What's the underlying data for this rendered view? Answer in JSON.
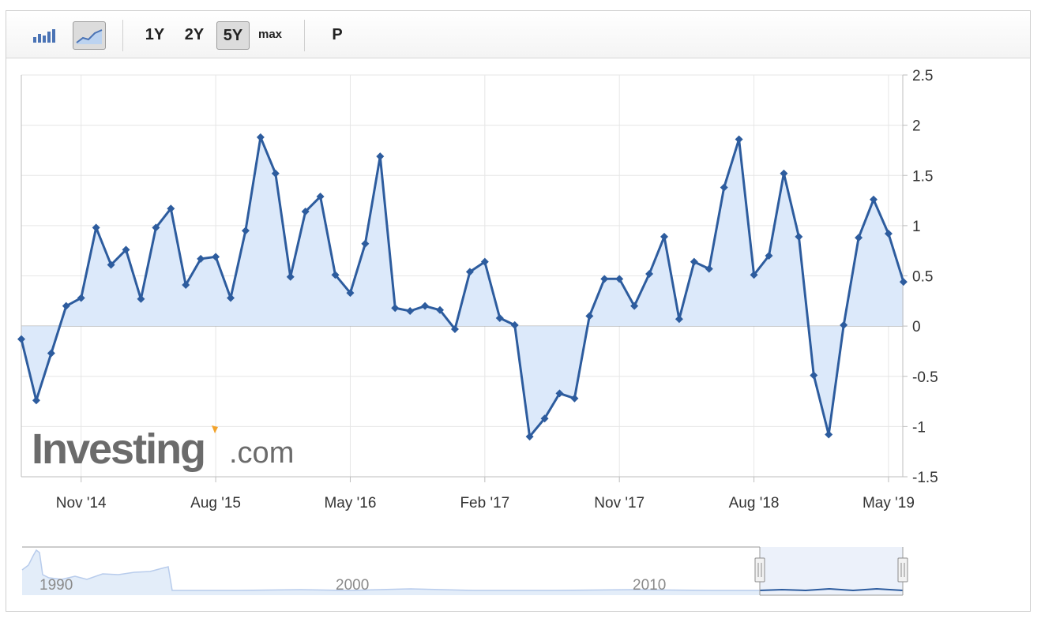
{
  "toolbar": {
    "chart_types": [
      {
        "icon": "bar-chart-icon",
        "active": false
      },
      {
        "icon": "line-chart-icon",
        "active": true
      }
    ],
    "ranges": [
      {
        "label": "1Y",
        "active": false
      },
      {
        "label": "2Y",
        "active": false
      },
      {
        "label": "5Y",
        "active": true
      },
      {
        "label": "max",
        "active": false
      }
    ],
    "extra_label": "P"
  },
  "watermark": {
    "brand": "Investing",
    "suffix": ".com"
  },
  "colors": {
    "line": "#2d5c9e",
    "fill": "#dce9fa",
    "grid": "#e6e6e6",
    "axis": "#bdbdbd",
    "text": "#333333"
  },
  "chart_data": {
    "type": "area",
    "x_start": "Jul '14",
    "x_end": "May '19",
    "xtick_labels": [
      "Nov '14",
      "Aug '15",
      "May '16",
      "Feb '17",
      "Nov '17",
      "Aug '18",
      "May '19"
    ],
    "ytick_labels": [
      "2.5",
      "2",
      "1.5",
      "1",
      "0.5",
      "0",
      "-0.5",
      "-1",
      "-1.5"
    ],
    "ylim": [
      -1.5,
      2.5
    ],
    "grid": true,
    "y_axis_position": "right",
    "values": [
      -0.13,
      -0.74,
      -0.27,
      0.2,
      0.28,
      0.98,
      0.61,
      0.76,
      0.27,
      0.98,
      1.17,
      0.41,
      0.67,
      0.69,
      0.28,
      0.95,
      1.88,
      1.52,
      0.49,
      1.14,
      1.29,
      0.51,
      0.33,
      0.82,
      1.69,
      0.18,
      0.15,
      0.2,
      0.16,
      -0.03,
      0.54,
      0.64,
      0.08,
      0.01,
      -1.1,
      -0.92,
      -0.67,
      -0.72,
      0.1,
      0.47,
      0.47,
      0.2,
      0.52,
      0.89,
      0.07,
      0.64,
      0.57,
      1.38,
      1.86,
      0.51,
      0.7,
      1.52,
      0.89,
      -0.49,
      -1.08,
      0.01,
      0.88,
      1.26,
      0.92,
      0.44
    ]
  },
  "navigator": {
    "labels": [
      "1990",
      "2000",
      "2010"
    ]
  }
}
